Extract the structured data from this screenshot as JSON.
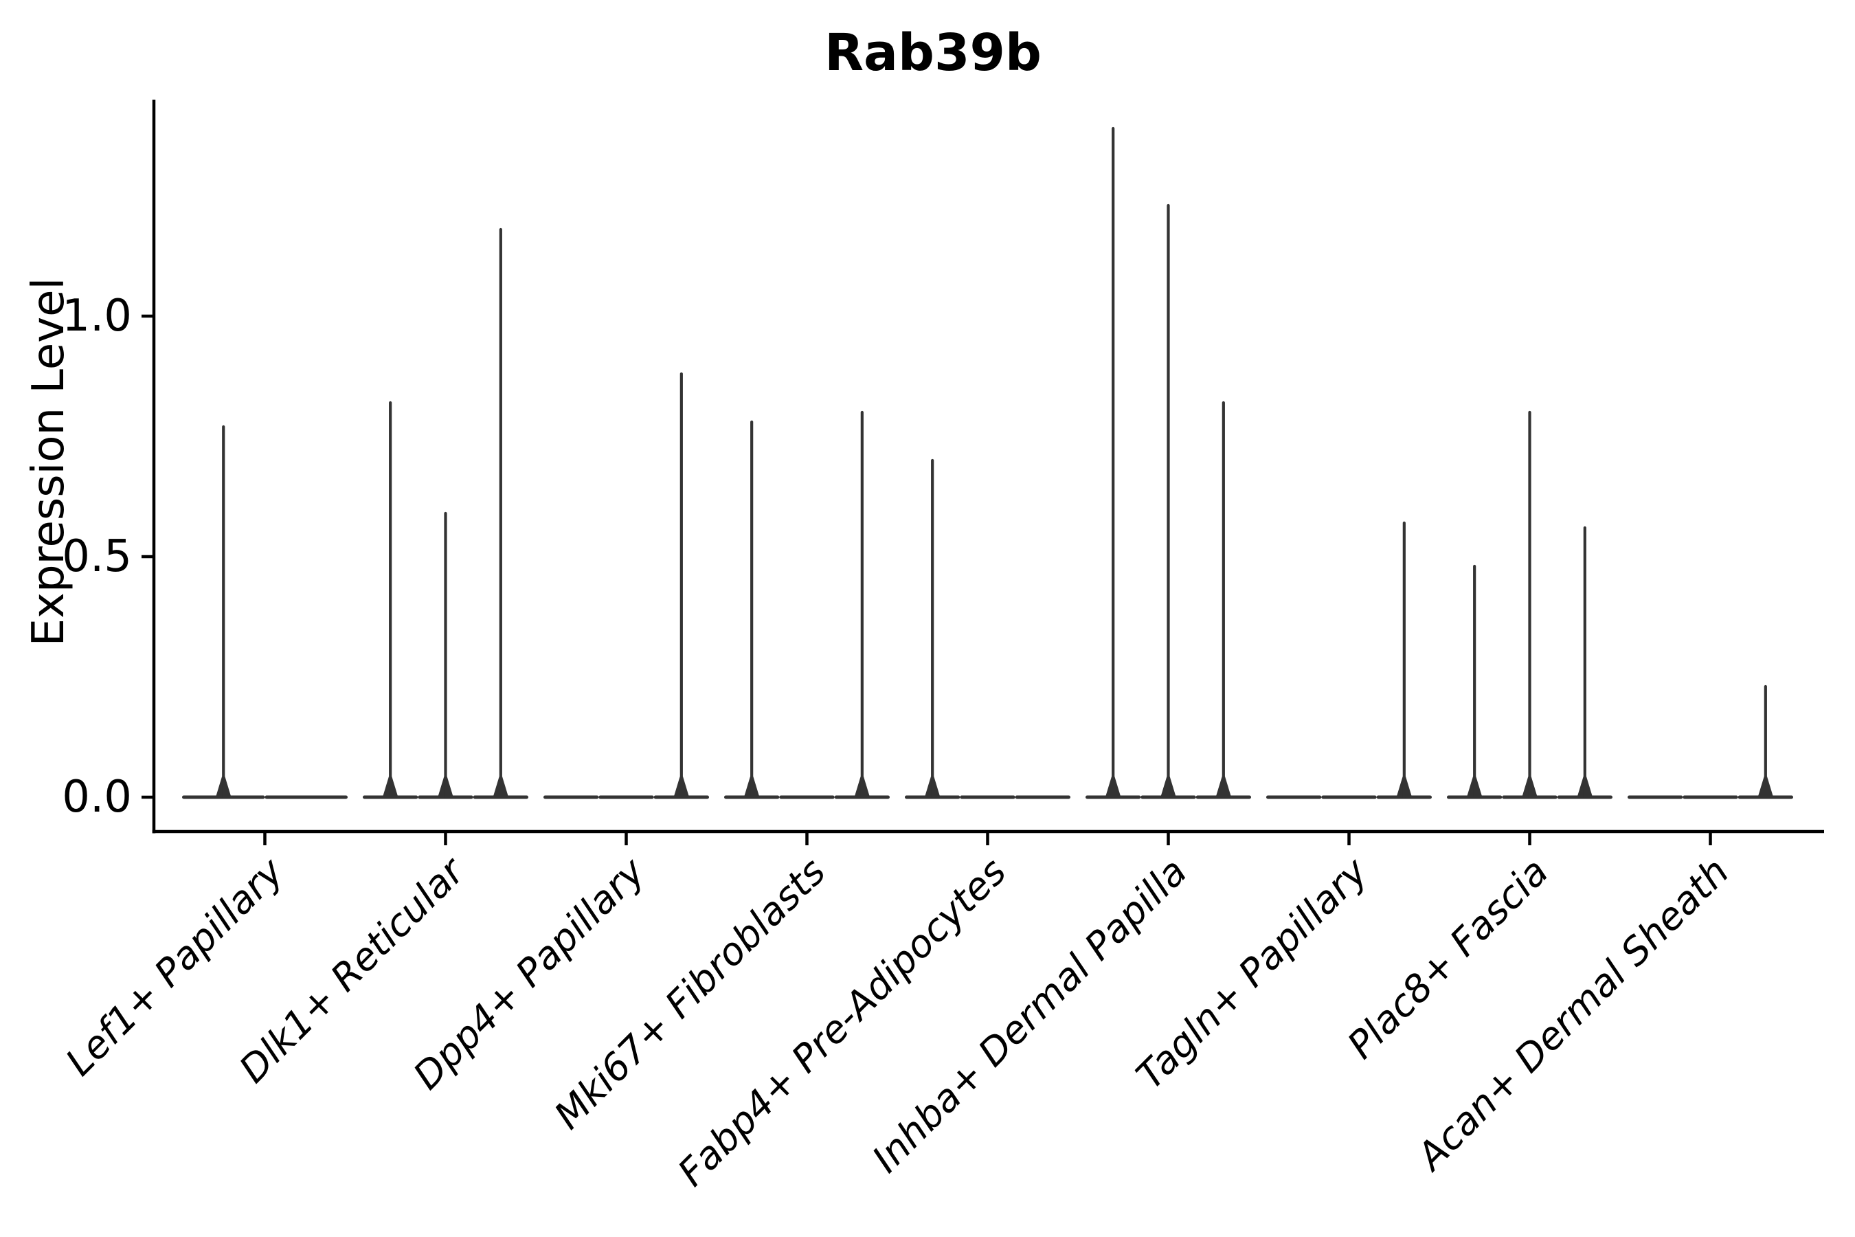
{
  "title": "Rab39b",
  "axes": {
    "ylabel": "Expression Level",
    "ytick_labels": [
      "0.0",
      "0.5",
      "1.0"
    ]
  },
  "colors": {
    "violin": "#333333",
    "spine": "#000000",
    "text": "#000000",
    "background": "#ffffff"
  },
  "chart_data": {
    "type": "violin",
    "title": "Rab39b",
    "xlabel": "",
    "ylabel": "Expression Level",
    "ylim": [
      0,
      1.45
    ],
    "yticks": [
      0.0,
      0.5,
      1.0
    ],
    "grid": false,
    "legend": "none",
    "x_tick_rotation_deg": 45,
    "description": "Grouped violin plot; each category holds evenly spaced sub-violins. Violins are collapsed: a flat base at expression 0 plus a thin vertical spike reaching the violin maximum (0 = flat base only).",
    "categories": [
      "Lef1+ Papillary",
      "Dlk1+ Reticular",
      "Dpp4+ Papillary",
      "Mki67+ Fibroblasts",
      "Fabp4+ Pre-Adipocytes",
      "Inhba+ Dermal Papilla",
      "Tagln+ Papillary",
      "Plac8+ Fascia",
      "Acan+ Dermal Sheath"
    ],
    "groups": [
      {
        "category": "Lef1+ Papillary",
        "n_violins": 2,
        "violin_max": [
          0.77,
          0
        ]
      },
      {
        "category": "Dlk1+ Reticular",
        "n_violins": 3,
        "violin_max": [
          0.82,
          0.59,
          1.18
        ]
      },
      {
        "category": "Dpp4+ Papillary",
        "n_violins": 3,
        "violin_max": [
          0,
          0,
          0.88
        ]
      },
      {
        "category": "Mki67+ Fibroblasts",
        "n_violins": 3,
        "violin_max": [
          0.78,
          0,
          0.8
        ]
      },
      {
        "category": "Fabp4+ Pre-Adipocytes",
        "n_violins": 3,
        "violin_max": [
          0.7,
          0,
          0
        ]
      },
      {
        "category": "Inhba+ Dermal Papilla",
        "n_violins": 3,
        "violin_max": [
          1.39,
          1.23,
          0.82
        ]
      },
      {
        "category": "Tagln+ Papillary",
        "n_violins": 3,
        "violin_max": [
          0,
          0,
          0.57
        ]
      },
      {
        "category": "Plac8+ Fascia",
        "n_violins": 3,
        "violin_max": [
          0.48,
          0.8,
          0.56
        ]
      },
      {
        "category": "Acan+ Dermal Sheath",
        "n_violins": 3,
        "violin_max": [
          0,
          0,
          0.23
        ]
      }
    ]
  }
}
